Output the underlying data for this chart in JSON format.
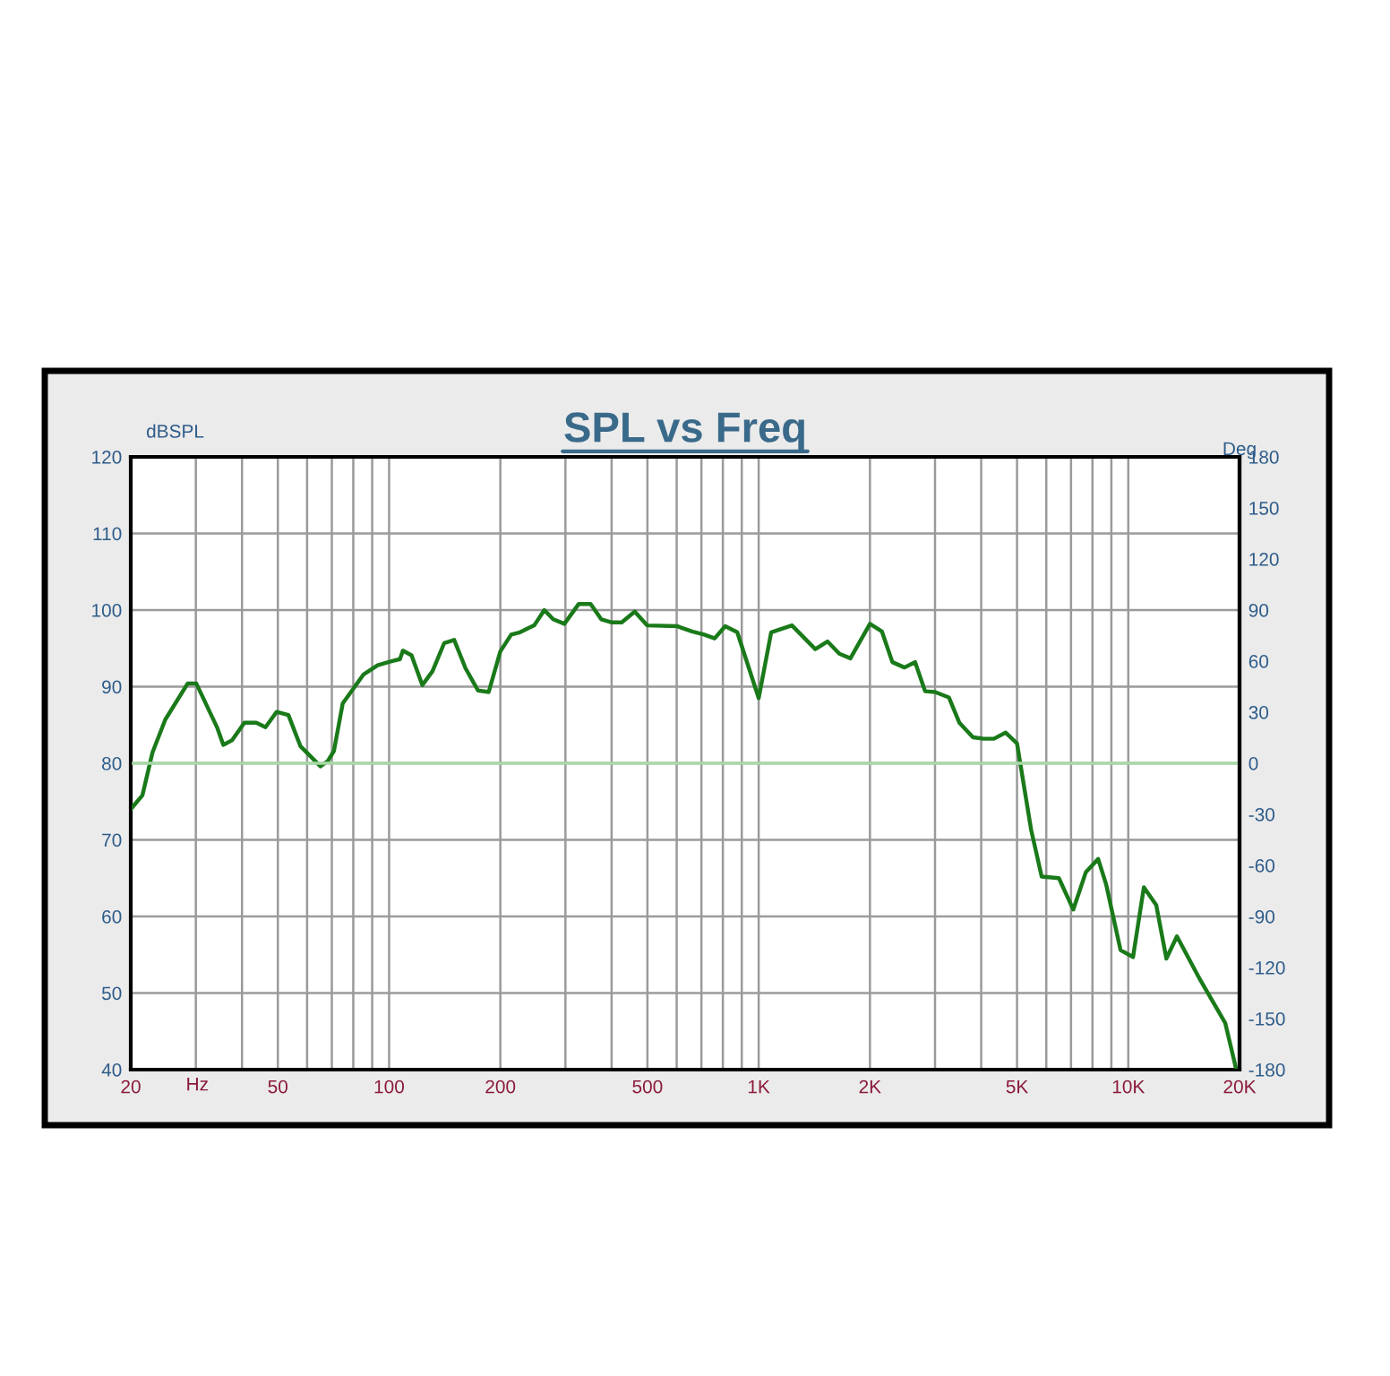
{
  "chart_data": {
    "type": "line",
    "title": "SPL vs Freq",
    "xlabel": "Hz",
    "ylabel": "dBSPL",
    "y2label": "Deg",
    "log": "x",
    "grid": true,
    "legend": false,
    "marker": "none",
    "line_style": "solid",
    "xlim": [
      20,
      20000
    ],
    "ylim": [
      40,
      120
    ],
    "y2lim": [
      -180,
      180
    ],
    "xticks": [
      {
        "value": 20,
        "label": "20"
      },
      {
        "value": 30,
        "label": null
      },
      {
        "value": 40,
        "label": null
      },
      50,
      {
        "value": 60,
        "label": null
      },
      {
        "value": 70,
        "label": null
      },
      {
        "value": 80,
        "label": null
      },
      {
        "value": 90,
        "label": null
      },
      100,
      200,
      {
        "value": 300,
        "label": null
      },
      {
        "value": 400,
        "label": null
      },
      500,
      {
        "value": 600,
        "label": null
      },
      {
        "value": 700,
        "label": null
      },
      {
        "value": 800,
        "label": null
      },
      {
        "value": 900,
        "label": null
      },
      {
        "value": 1000,
        "label": "1K"
      },
      {
        "value": 2000,
        "label": "2K"
      },
      {
        "value": 3000,
        "label": null
      },
      {
        "value": 4000,
        "label": null
      },
      {
        "value": 5000,
        "label": "5K"
      },
      {
        "value": 6000,
        "label": null
      },
      {
        "value": 7000,
        "label": null
      },
      {
        "value": 8000,
        "label": null
      },
      {
        "value": 9000,
        "label": null
      },
      {
        "value": 10000,
        "label": "10K"
      },
      {
        "value": 20000,
        "label": "20K"
      }
    ],
    "yticks": [
      40,
      50,
      60,
      70,
      80,
      90,
      100,
      110,
      120
    ],
    "y2ticks": [
      -180,
      -150,
      -120,
      -90,
      -60,
      -30,
      0,
      30,
      60,
      90,
      120,
      150,
      180
    ],
    "ref_lines": [
      {
        "axis": "y2",
        "value": 0,
        "label": null,
        "color": "#a8d8a8"
      }
    ],
    "series": [
      {
        "color": "#1a7a1a",
        "x": [
          20,
          21.5,
          22.9,
          24.8,
          28.5,
          30.1,
          34.3,
          35.6,
          37.6,
          40.6,
          43.7,
          46.3,
          49.6,
          53.4,
          57.6,
          65.2,
          68.3,
          70.9,
          74.9,
          85.3,
          93.1,
          101,
          107,
          109,
          115,
          123,
          131,
          141,
          150,
          161,
          174,
          186,
          200,
          214,
          226,
          247,
          263,
          278,
          298,
          326,
          351,
          375,
          399,
          426,
          462,
          499,
          601,
          660,
          712,
          760,
          812,
          875,
          1000,
          1081,
          1230,
          1423,
          1535,
          1653,
          1771,
          2000,
          2155,
          2300,
          2480,
          2650,
          2820,
          3000,
          3270,
          3490,
          3800,
          4060,
          4330,
          4660,
          5000,
          5460,
          5830,
          6490,
          7100,
          7680,
          8290,
          8710,
          9530,
          10300,
          11020,
          11900,
          12680,
          13540,
          15660,
          18290,
          19600
        ],
        "values": [
          74.0,
          75.8,
          81.4,
          85.7,
          90.4,
          90.4,
          84.6,
          82.4,
          83.0,
          85.3,
          85.3,
          84.7,
          86.7,
          86.3,
          82.2,
          79.6,
          80.3,
          81.6,
          87.8,
          91.6,
          92.8,
          93.3,
          93.6,
          94.7,
          94.1,
          90.2,
          92.0,
          95.7,
          96.1,
          92.4,
          89.5,
          89.3,
          94.6,
          96.8,
          97.1,
          98.0,
          100.0,
          98.8,
          98.2,
          100.8,
          100.8,
          98.8,
          98.4,
          98.4,
          99.8,
          98.0,
          97.9,
          97.2,
          96.8,
          96.3,
          97.9,
          97.1,
          88.5,
          97.1,
          98.0,
          94.9,
          95.9,
          94.3,
          93.7,
          98.2,
          97.2,
          93.2,
          92.5,
          93.2,
          89.4,
          89.3,
          88.6,
          85.3,
          83.4,
          83.2,
          83.2,
          84.0,
          82.6,
          71.3,
          65.2,
          65.0,
          60.9,
          65.8,
          67.5,
          64.2,
          55.6,
          54.7,
          63.8,
          61.5,
          54.5,
          57.4,
          51.7,
          46.1,
          40.0
        ]
      }
    ]
  }
}
